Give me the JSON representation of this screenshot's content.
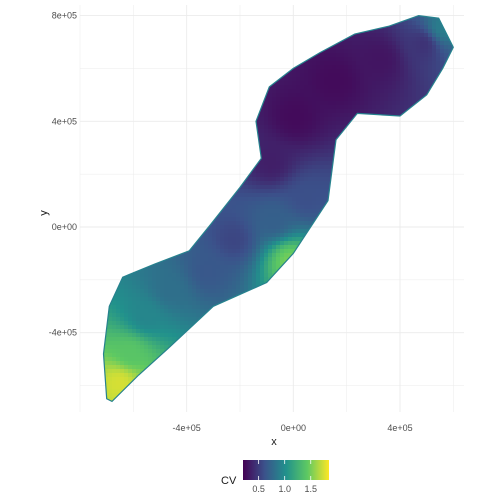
{
  "chart_data": {
    "type": "heatmap",
    "title": "",
    "xlabel": "x",
    "ylabel": "y",
    "xlim": [
      -800000,
      640000
    ],
    "ylim": [
      -700000,
      840000
    ],
    "x_ticks": [
      {
        "value": -400000,
        "label": "-4e+05"
      },
      {
        "value": 0,
        "label": "0e+00"
      },
      {
        "value": 400000,
        "label": "4e+05"
      }
    ],
    "y_ticks": [
      {
        "value": 800000,
        "label": "8e+05"
      },
      {
        "value": 400000,
        "label": "4e+05"
      },
      {
        "value": 0,
        "label": "0e+00"
      },
      {
        "value": -400000,
        "label": "-4e+05"
      }
    ],
    "grid": true,
    "fill_variable": "CV",
    "color_scale": "viridis",
    "color_range": [
      0.2,
      1.85
    ],
    "legend": {
      "title": "CV",
      "position": "bottom",
      "ticks": [
        {
          "value": 0.5,
          "label": "0.5"
        },
        {
          "value": 1.0,
          "label": "1.0"
        },
        {
          "value": 1.5,
          "label": "1.5"
        }
      ]
    },
    "region_outline": [
      [
        -700000,
        -650000
      ],
      [
        -712000,
        -480000
      ],
      [
        -690000,
        -300000
      ],
      [
        -640000,
        -190000
      ],
      [
        -520000,
        -140000
      ],
      [
        -390000,
        -90000
      ],
      [
        -310000,
        10000
      ],
      [
        -200000,
        150000
      ],
      [
        -120000,
        260000
      ],
      [
        -140000,
        400000
      ],
      [
        -90000,
        530000
      ],
      [
        0,
        600000
      ],
      [
        100000,
        660000
      ],
      [
        230000,
        730000
      ],
      [
        360000,
        760000
      ],
      [
        470000,
        800000
      ],
      [
        545000,
        790000
      ],
      [
        600000,
        680000
      ],
      [
        560000,
        600000
      ],
      [
        500000,
        500000
      ],
      [
        400000,
        420000
      ],
      [
        240000,
        430000
      ],
      [
        160000,
        330000
      ],
      [
        130000,
        100000
      ],
      [
        0,
        -100000
      ],
      [
        -100000,
        -210000
      ],
      [
        -300000,
        -300000
      ],
      [
        -470000,
        -460000
      ],
      [
        -580000,
        -560000
      ],
      [
        -680000,
        -660000
      ]
    ],
    "cv_samples": [
      {
        "x": -660000,
        "y": -580000,
        "cv": 1.75
      },
      {
        "x": -620000,
        "y": -470000,
        "cv": 1.4
      },
      {
        "x": -560000,
        "y": -330000,
        "cv": 0.95
      },
      {
        "x": -470000,
        "y": -230000,
        "cv": 0.8
      },
      {
        "x": -330000,
        "y": -160000,
        "cv": 0.65
      },
      {
        "x": -230000,
        "y": -40000,
        "cv": 0.55
      },
      {
        "x": -20000,
        "y": -120000,
        "cv": 1.5
      },
      {
        "x": -80000,
        "y": 30000,
        "cv": 0.7
      },
      {
        "x": 40000,
        "y": 120000,
        "cv": 0.6
      },
      {
        "x": -90000,
        "y": 250000,
        "cv": 0.35
      },
      {
        "x": 0,
        "y": 420000,
        "cv": 0.25
      },
      {
        "x": 150000,
        "y": 560000,
        "cv": 0.25
      },
      {
        "x": 320000,
        "y": 640000,
        "cv": 0.3
      },
      {
        "x": 480000,
        "y": 700000,
        "cv": 0.45
      },
      {
        "x": 550000,
        "y": 760000,
        "cv": 0.9
      }
    ]
  }
}
